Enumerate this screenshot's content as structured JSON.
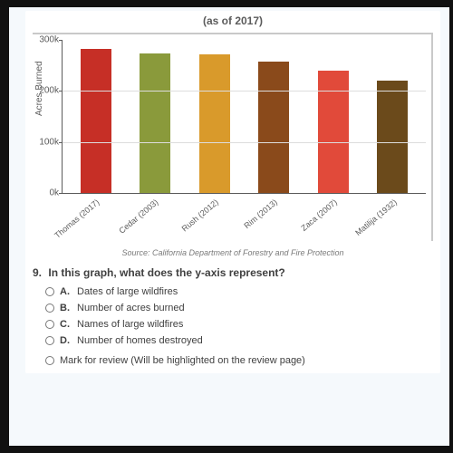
{
  "subtitle": "(as of 2017)",
  "chart": {
    "type": "bar",
    "ylabel": "Acres Burned",
    "ylim": [
      0,
      300000
    ],
    "yticks": [
      {
        "v": 0,
        "label": "0k"
      },
      {
        "v": 100000,
        "label": "100k"
      },
      {
        "v": 200000,
        "label": "200k"
      },
      {
        "v": 300000,
        "label": "300k"
      }
    ],
    "grid_color": "#dddddd",
    "label_color": "#5b5b5b",
    "label_fontsize": 10,
    "bars": [
      {
        "label": "Thomas (2017)",
        "value": 282000,
        "color": "#c62f26"
      },
      {
        "label": "Cedar (2003)",
        "value": 273000,
        "color": "#8a9a3b"
      },
      {
        "label": "Rush (2012)",
        "value": 272000,
        "color": "#d99a2b"
      },
      {
        "label": "Rim (2013)",
        "value": 258000,
        "color": "#8a4a1b"
      },
      {
        "label": "Zaca (2007)",
        "value": 240000,
        "color": "#e14a3a"
      },
      {
        "label": "Matilija (1932)",
        "value": 220000,
        "color": "#6b4a1b"
      }
    ]
  },
  "source": "Source: California Department of Forestry and Fire Protection",
  "question": {
    "number": "9.",
    "text": "In this graph, what does the y-axis represent?",
    "options": [
      {
        "letter": "A.",
        "text": "Dates of large wildfires"
      },
      {
        "letter": "B.",
        "text": "Number of acres burned"
      },
      {
        "letter": "C.",
        "text": "Names of large wildfires"
      },
      {
        "letter": "D.",
        "text": "Number of homes destroyed"
      }
    ]
  },
  "review_text": "Mark for review (Will be highlighted on the review page)"
}
